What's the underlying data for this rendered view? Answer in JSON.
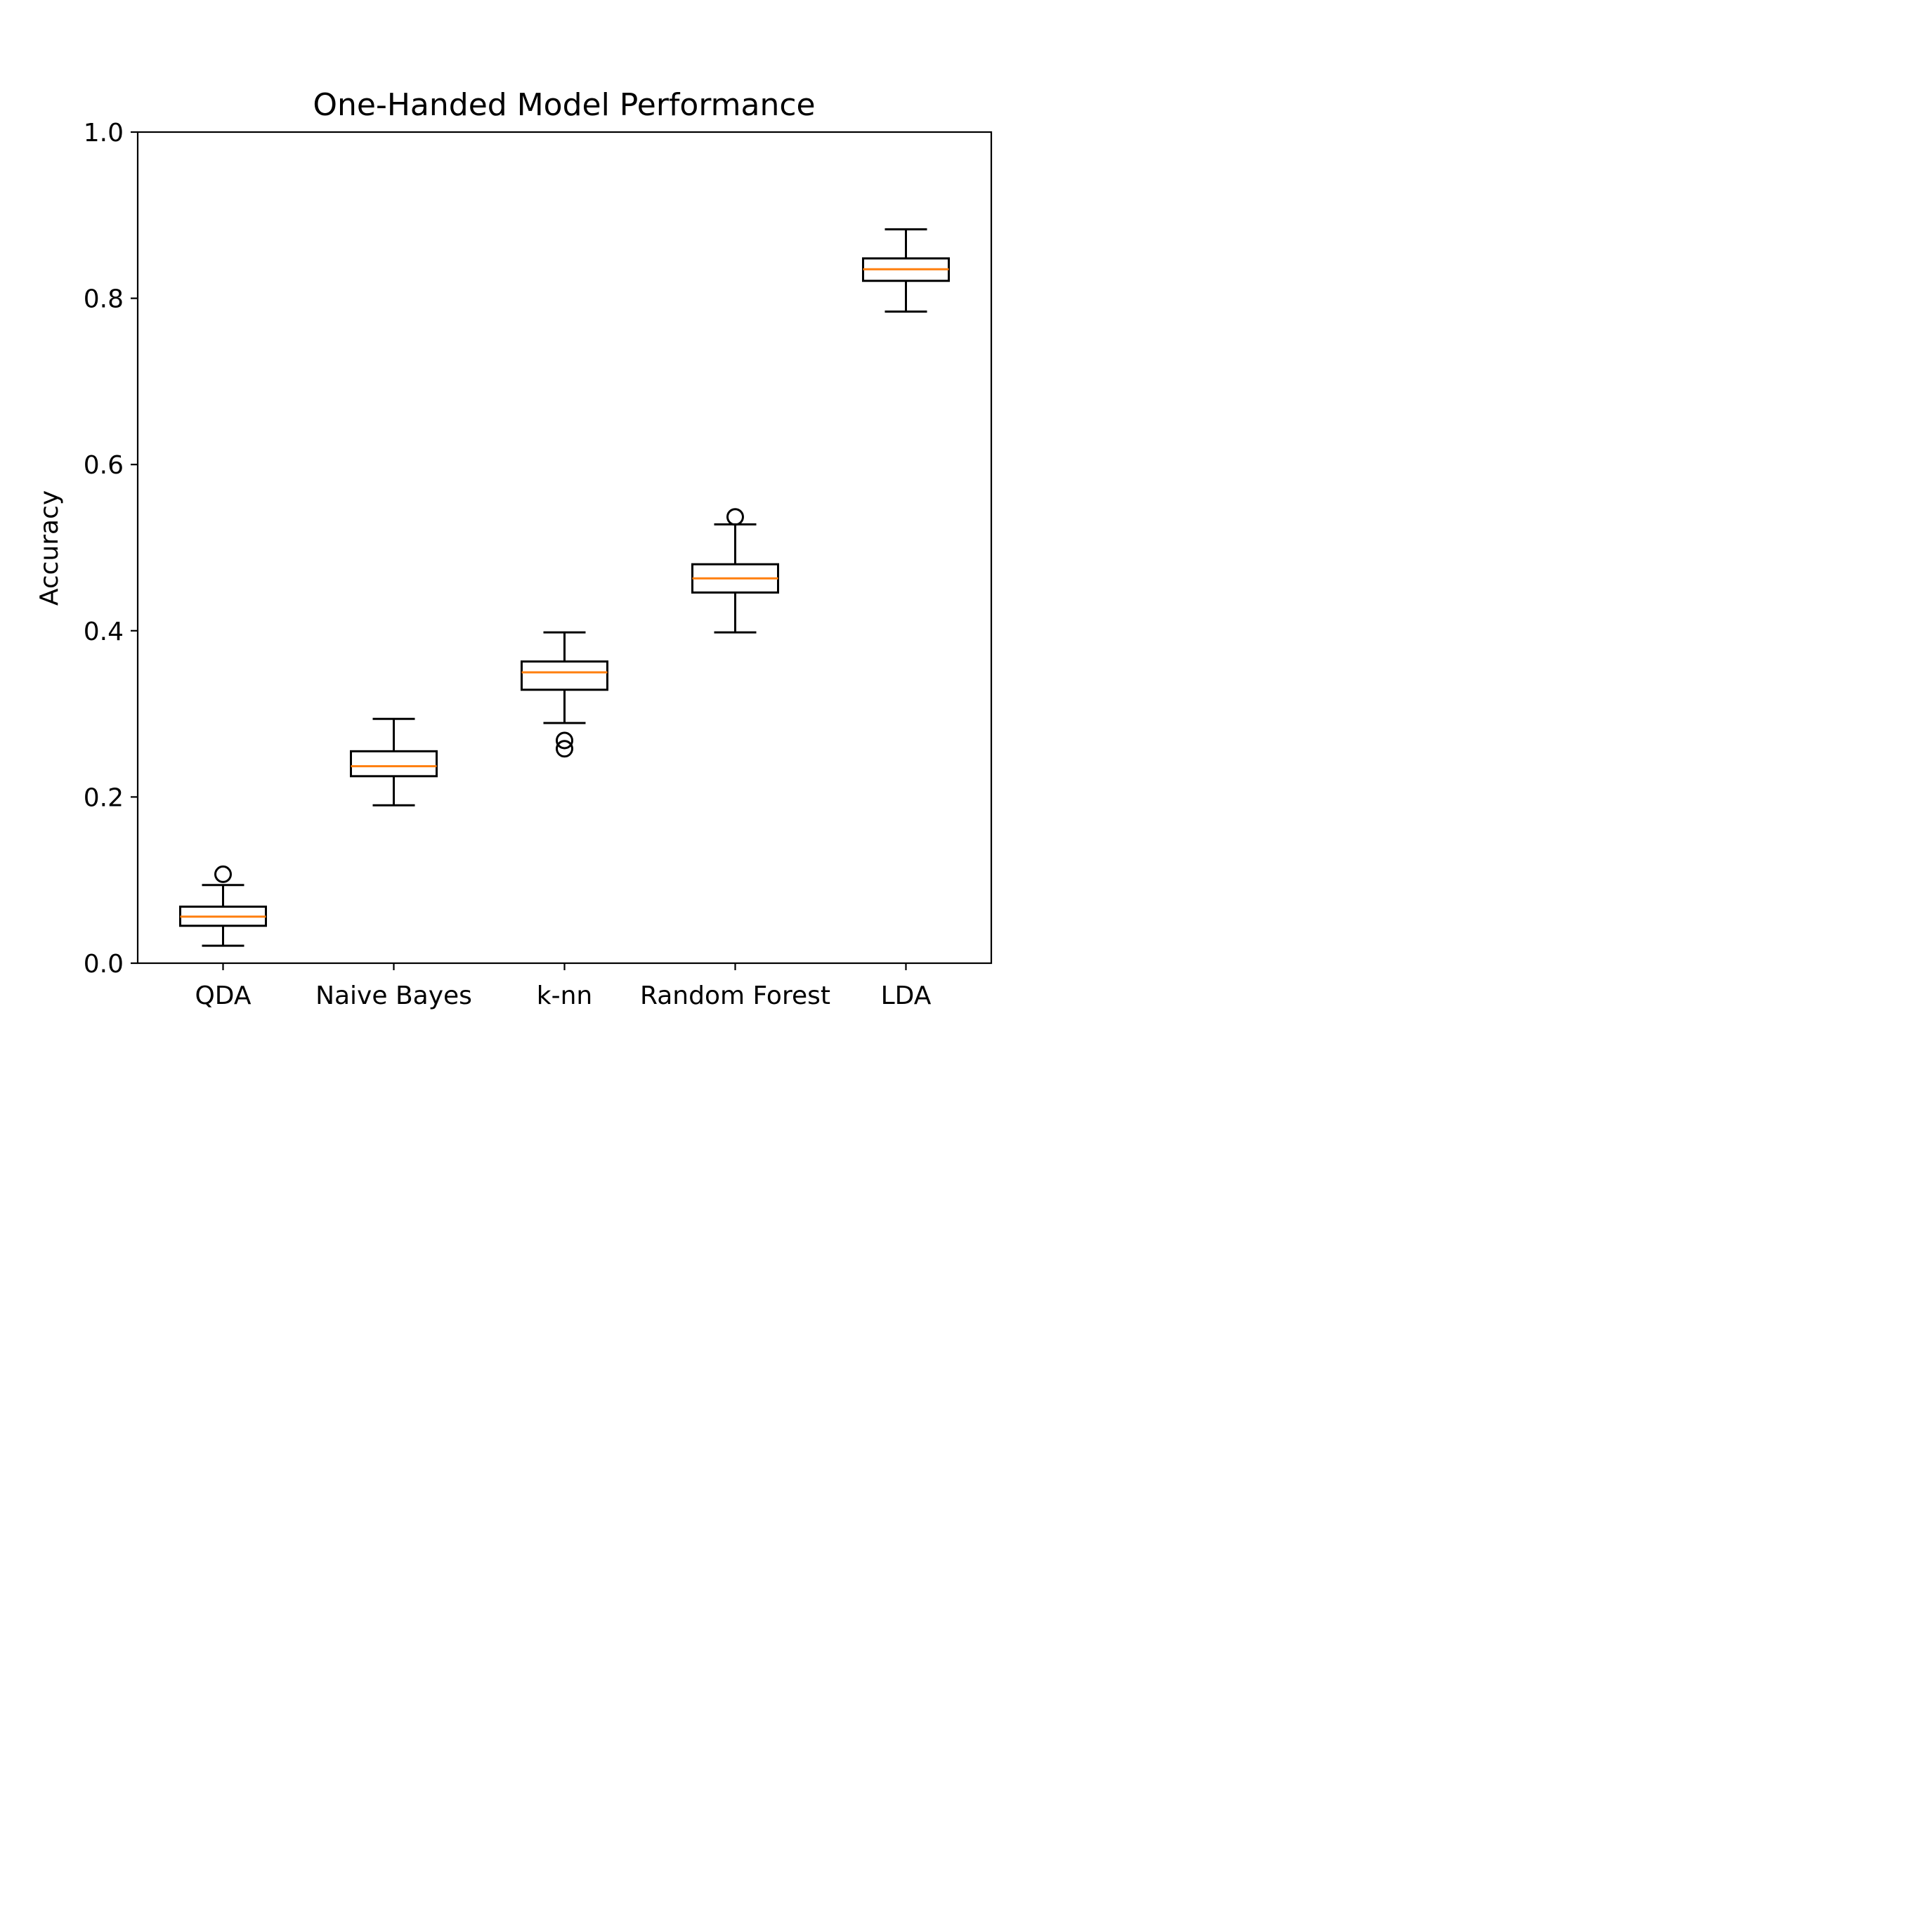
{
  "chart_data": {
    "type": "box",
    "title": "One-Handed Model Performance",
    "ylabel": "Accuracy",
    "xlabel": "",
    "ylim": [
      0.0,
      1.0
    ],
    "yticks": [
      "0.0",
      "0.2",
      "0.4",
      "0.6",
      "0.8",
      "1.0"
    ],
    "ytick_values": [
      0.0,
      0.2,
      0.4,
      0.6,
      0.8,
      1.0
    ],
    "categories": [
      "QDA",
      "Naive Bayes",
      "k-nn",
      "Random Forest",
      "LDA"
    ],
    "boxes": [
      {
        "whisker_low": 0.021,
        "q1": 0.045,
        "median": 0.056,
        "q3": 0.068,
        "whisker_high": 0.094,
        "outliers": [
          0.107
        ]
      },
      {
        "whisker_low": 0.19,
        "q1": 0.225,
        "median": 0.237,
        "q3": 0.255,
        "whisker_high": 0.294,
        "outliers": []
      },
      {
        "whisker_low": 0.289,
        "q1": 0.329,
        "median": 0.35,
        "q3": 0.363,
        "whisker_high": 0.398,
        "outliers": [
          0.268,
          0.258
        ]
      },
      {
        "whisker_low": 0.398,
        "q1": 0.446,
        "median": 0.463,
        "q3": 0.48,
        "whisker_high": 0.528,
        "outliers": [
          0.537
        ]
      },
      {
        "whisker_low": 0.784,
        "q1": 0.821,
        "median": 0.835,
        "q3": 0.848,
        "whisker_high": 0.883,
        "outliers": []
      }
    ],
    "grid": false,
    "legend": "none",
    "colors": {
      "box": "#000000",
      "median": "#ff7f0e",
      "axes": "#000000",
      "background": "#ffffff"
    }
  }
}
